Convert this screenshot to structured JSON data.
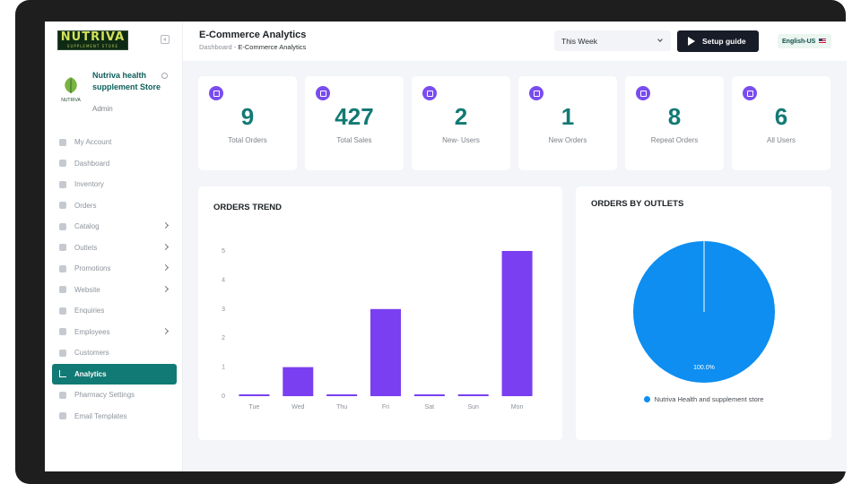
{
  "brand": {
    "logo_text": "NUTRIVA",
    "logo_subtext": "SUPPLEMENT STORE"
  },
  "store": {
    "name": "Nutriva health supplement Store",
    "role": "Admin",
    "logo_label": "NUTRIVA"
  },
  "sidebar": {
    "items": [
      {
        "label": "My Account",
        "icon": "user-circle-icon",
        "chevron": false
      },
      {
        "label": "Dashboard",
        "icon": "grid-icon",
        "chevron": false
      },
      {
        "label": "Inventory",
        "icon": "box-icon",
        "chevron": false
      },
      {
        "label": "Orders",
        "icon": "cart-icon",
        "chevron": false
      },
      {
        "label": "Catalog",
        "icon": "pill-icon",
        "chevron": true
      },
      {
        "label": "Outlets",
        "icon": "store-icon",
        "chevron": true
      },
      {
        "label": "Promotions",
        "icon": "megaphone-icon",
        "chevron": true
      },
      {
        "label": "Website",
        "icon": "globe-icon",
        "chevron": true
      },
      {
        "label": "Enquiries",
        "icon": "clipboard-icon",
        "chevron": false
      },
      {
        "label": "Employees",
        "icon": "users-icon",
        "chevron": true
      },
      {
        "label": "Customers",
        "icon": "users-icon",
        "chevron": false
      },
      {
        "label": "Analytics",
        "icon": "bar-chart-icon",
        "chevron": false,
        "active": true
      },
      {
        "label": "Pharmacy Settings",
        "icon": "gear-icon",
        "chevron": false
      },
      {
        "label": "Email Templates",
        "icon": "mail-icon",
        "chevron": false
      }
    ]
  },
  "header": {
    "title": "E-Commerce Analytics",
    "breadcrumb_root": "Dashboard",
    "breadcrumb_sep": "-",
    "breadcrumb_current": "E-Commerce Analytics",
    "period": "This Week",
    "setup_label": "Setup guide",
    "language": "English-US"
  },
  "stats": [
    {
      "value": "9",
      "label": "Total Orders",
      "icon": "calendar-icon"
    },
    {
      "value": "427",
      "label": "Total Sales",
      "icon": "check-circle-icon"
    },
    {
      "value": "2",
      "label": "New- Users",
      "icon": "link-icon"
    },
    {
      "value": "1",
      "label": "New Orders",
      "icon": "calendar-icon"
    },
    {
      "value": "8",
      "label": "Repeat Orders",
      "icon": "user-icon"
    },
    {
      "value": "6",
      "label": "All Users",
      "icon": "link-icon"
    }
  ],
  "colors": {
    "accent": "#127a74",
    "bar": "#7a3ff0",
    "pie": "#0d8ef0",
    "stat_icon": "#7a4cf0"
  },
  "chart_data": [
    {
      "type": "bar",
      "title": "ORDERS TREND",
      "categories": [
        "Tue",
        "Wed",
        "Thu",
        "Fri",
        "Sat",
        "Sun",
        "Mon"
      ],
      "values": [
        0,
        1,
        0,
        3,
        0,
        0,
        5
      ],
      "yticks": [
        0,
        1,
        2,
        3,
        4,
        5
      ],
      "ylim": [
        0,
        5
      ],
      "grid": false
    },
    {
      "type": "pie",
      "title": "ORDERS BY OUTLETS",
      "slices": [
        {
          "name": "Nutriva Health and supplement store",
          "value": 100,
          "label": "100.0%"
        }
      ],
      "legend_position": "bottom"
    }
  ]
}
